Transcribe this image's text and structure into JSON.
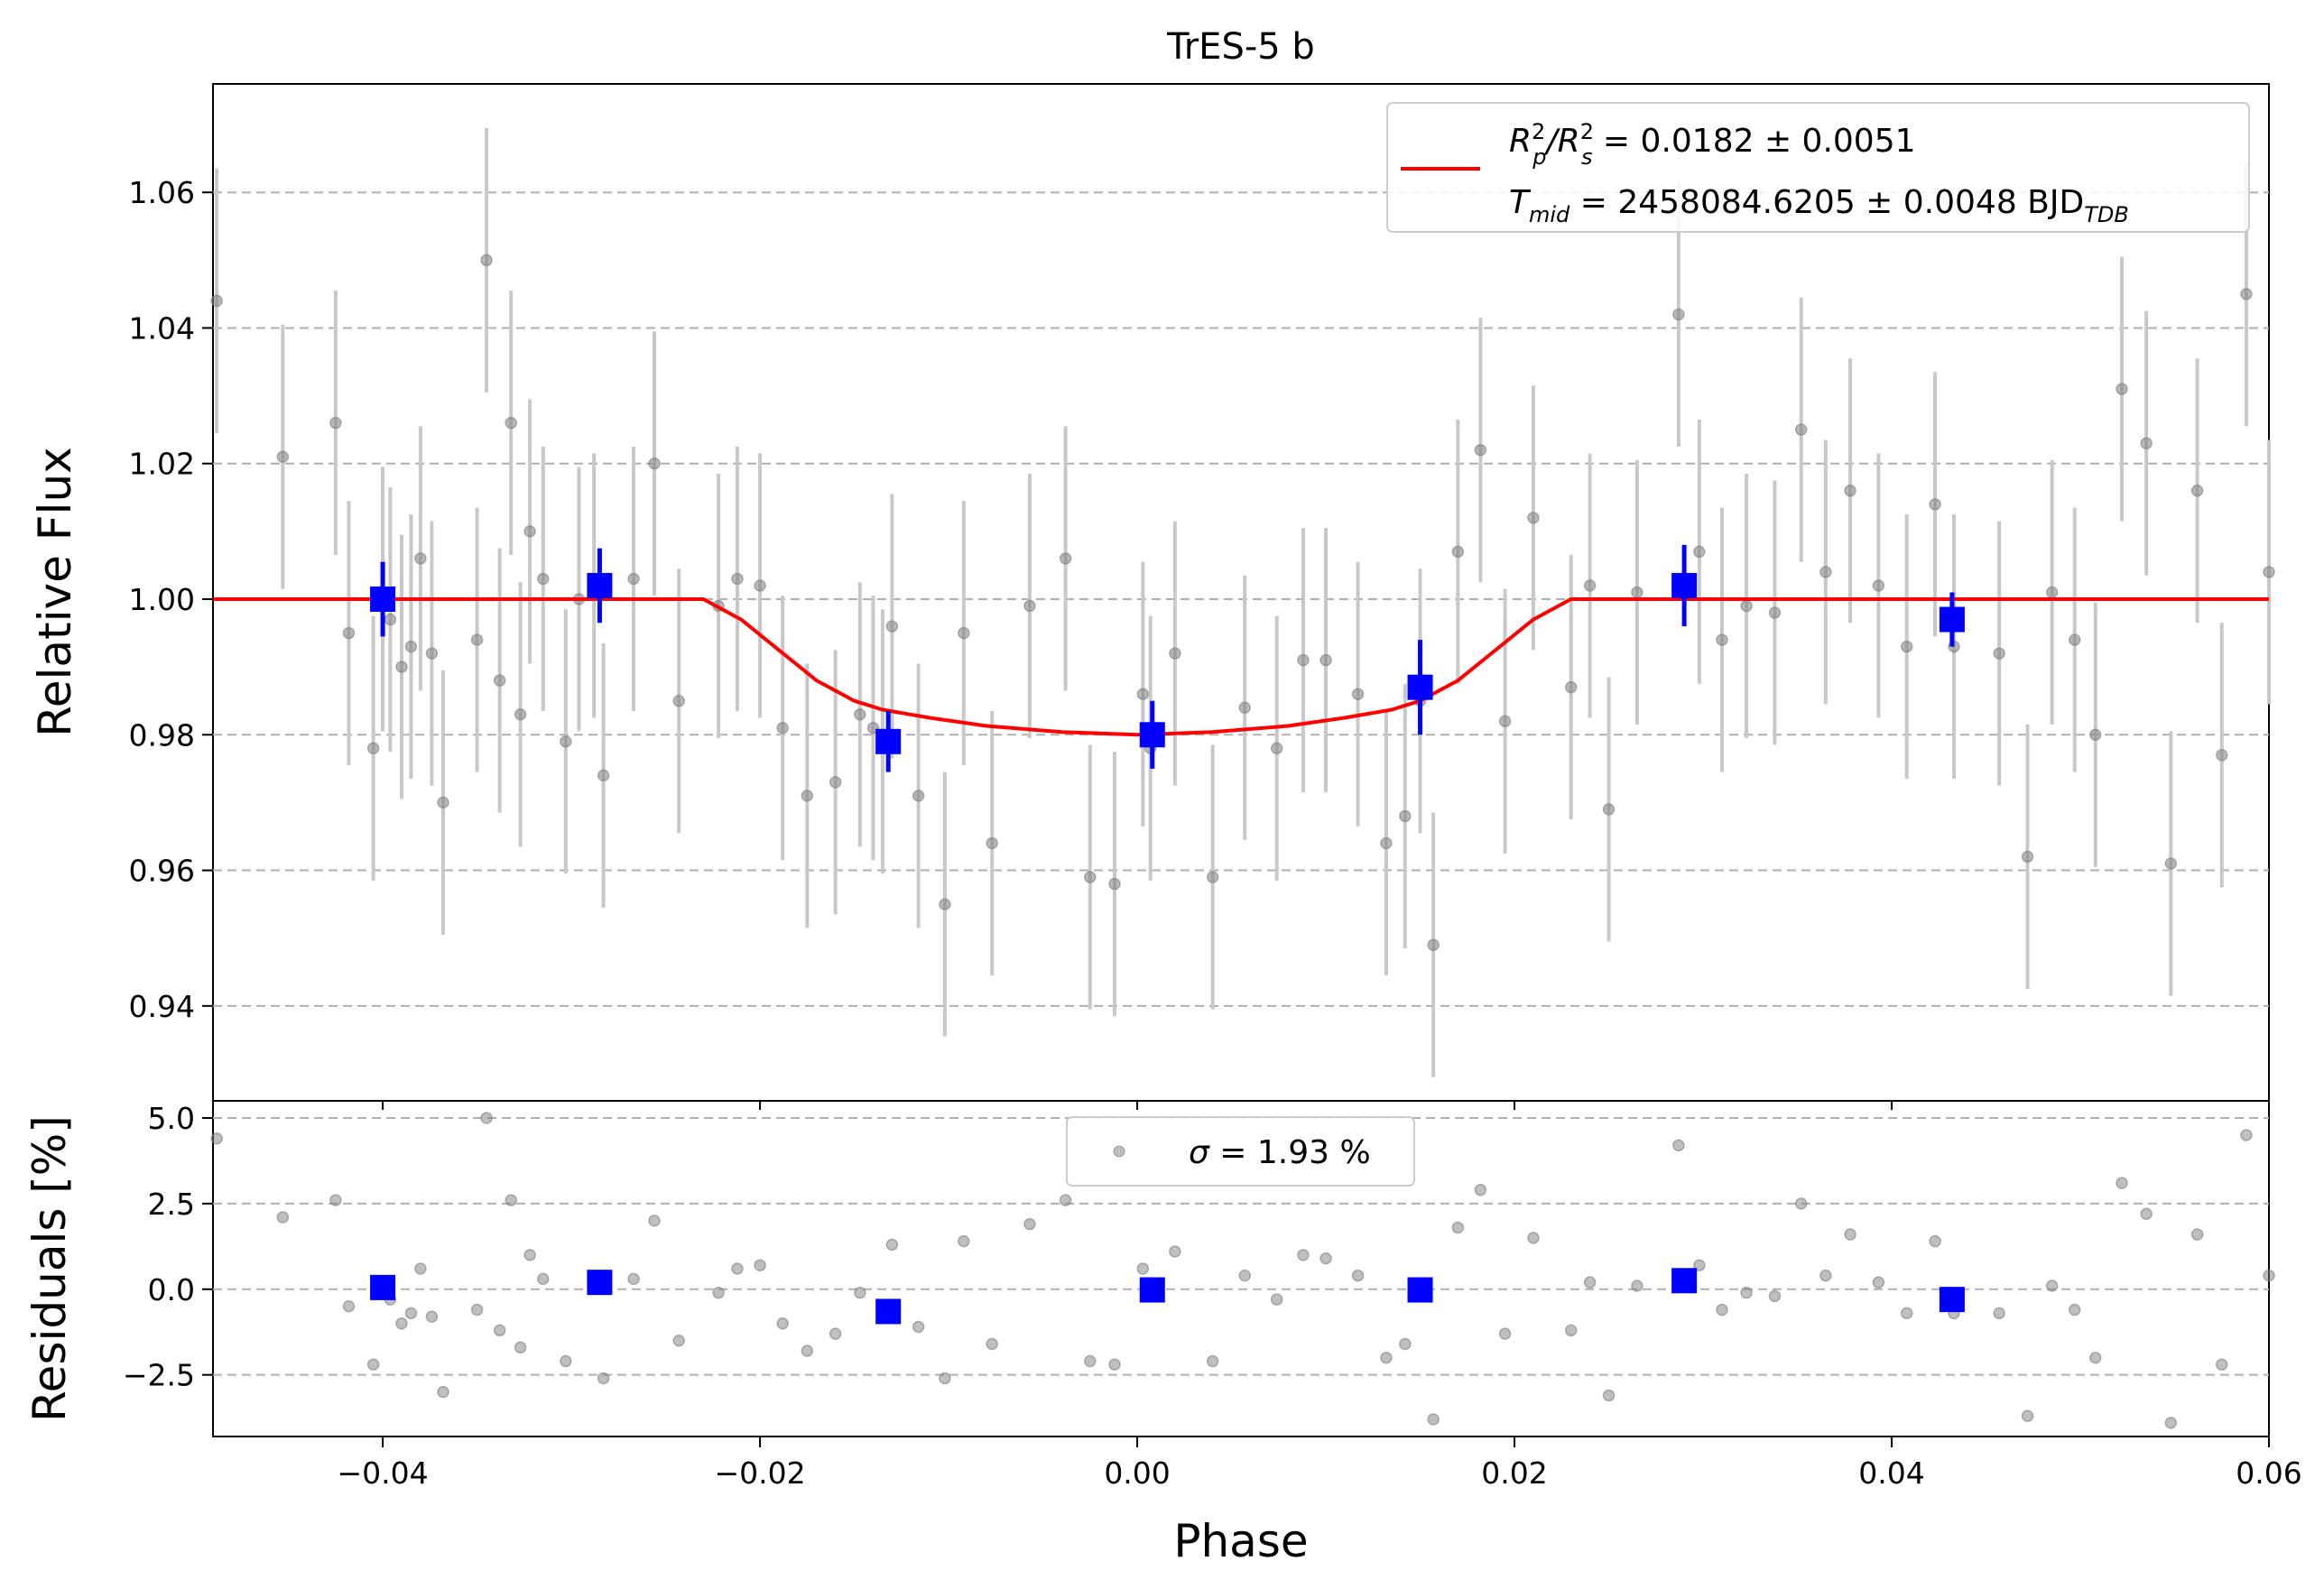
{
  "chart_data": {
    "type": "scatter",
    "title": "TrES-5 b",
    "xlabel": "Phase",
    "xlim": [
      -0.049,
      0.06
    ],
    "xticks": [
      -0.04,
      -0.02,
      0.0,
      0.02,
      0.04,
      0.06
    ],
    "xtick_labels": [
      "−0.04",
      "−0.02",
      "0.00",
      "0.02",
      "0.04",
      "0.06"
    ],
    "grid": "horizontal dashed",
    "colors": {
      "raw": "#808080",
      "errorbar": "#c8c8c8",
      "binned": "#0000ff",
      "model": "#ff0000",
      "grid": "#b0b0b0"
    },
    "top": {
      "ylabel": "Relative Flux",
      "ylim": [
        0.926,
        1.076
      ],
      "yticks": [
        0.94,
        0.96,
        0.98,
        1.0,
        1.02,
        1.04,
        1.06
      ],
      "ytick_labels": [
        "0.94",
        "0.96",
        "0.98",
        "1.00",
        "1.02",
        "1.04",
        "1.06"
      ],
      "legend": {
        "position": "top-right",
        "line1_a": "R",
        "line1_sup1": "2",
        "line1_sub1": "p",
        "line1_slash": "/R",
        "line1_sup2": "2",
        "line1_sub2": "s",
        "line1_value": " = 0.0182 ± 0.0051",
        "line2_a": "T",
        "line2_sub": "mid",
        "line2_value": " = 2458084.6205 ± 0.0048 BJD",
        "line2_sub2": "TDB"
      },
      "raw_error": 0.0195,
      "raw_points": [
        [
          -0.0488,
          1.044
        ],
        [
          -0.0453,
          1.021
        ],
        [
          -0.0425,
          1.026
        ],
        [
          -0.0418,
          0.995
        ],
        [
          -0.0405,
          0.978
        ],
        [
          -0.04,
          1.0
        ],
        [
          -0.0396,
          0.997
        ],
        [
          -0.039,
          0.99
        ],
        [
          -0.0385,
          0.993
        ],
        [
          -0.038,
          1.006
        ],
        [
          -0.0374,
          0.992
        ],
        [
          -0.0368,
          0.97
        ],
        [
          -0.035,
          0.994
        ],
        [
          -0.0345,
          1.05
        ],
        [
          -0.0338,
          0.988
        ],
        [
          -0.0332,
          1.026
        ],
        [
          -0.0327,
          0.983
        ],
        [
          -0.0322,
          1.01
        ],
        [
          -0.0315,
          1.003
        ],
        [
          -0.0303,
          0.979
        ],
        [
          -0.0296,
          1.0
        ],
        [
          -0.0288,
          1.002
        ],
        [
          -0.0283,
          0.974
        ],
        [
          -0.0267,
          1.003
        ],
        [
          -0.0256,
          1.02
        ],
        [
          -0.0243,
          0.985
        ],
        [
          -0.0222,
          0.999
        ],
        [
          -0.0212,
          1.003
        ],
        [
          -0.02,
          1.002
        ],
        [
          -0.0188,
          0.981
        ],
        [
          -0.0175,
          0.971
        ],
        [
          -0.016,
          0.973
        ],
        [
          -0.0147,
          0.983
        ],
        [
          -0.014,
          0.981
        ],
        [
          -0.0135,
          0.979
        ],
        [
          -0.013,
          0.996
        ],
        [
          -0.0116,
          0.971
        ],
        [
          -0.0102,
          0.955
        ],
        [
          -0.0092,
          0.995
        ],
        [
          -0.0077,
          0.964
        ],
        [
          -0.0057,
          0.999
        ],
        [
          -0.0038,
          1.006
        ],
        [
          -0.0025,
          0.959
        ],
        [
          -0.0012,
          0.958
        ],
        [
          0.0003,
          0.986
        ],
        [
          0.0007,
          0.978
        ],
        [
          0.002,
          0.992
        ],
        [
          0.004,
          0.959
        ],
        [
          0.0057,
          0.984
        ],
        [
          0.0074,
          0.978
        ],
        [
          0.0088,
          0.991
        ],
        [
          0.01,
          0.991
        ],
        [
          0.0117,
          0.986
        ],
        [
          0.0132,
          0.964
        ],
        [
          0.0142,
          0.968
        ],
        [
          0.015,
          0.985
        ],
        [
          0.0157,
          0.949
        ],
        [
          0.017,
          1.007
        ],
        [
          0.0182,
          1.022
        ],
        [
          0.0195,
          0.982
        ],
        [
          0.021,
          1.012
        ],
        [
          0.023,
          0.987
        ],
        [
          0.024,
          1.002
        ],
        [
          0.025,
          0.969
        ],
        [
          0.0265,
          1.001
        ],
        [
          0.0287,
          1.042
        ],
        [
          0.0298,
          1.007
        ],
        [
          0.031,
          0.994
        ],
        [
          0.0323,
          0.999
        ],
        [
          0.0338,
          0.998
        ],
        [
          0.0352,
          1.025
        ],
        [
          0.0365,
          1.004
        ],
        [
          0.0378,
          1.016
        ],
        [
          0.0393,
          1.002
        ],
        [
          0.0408,
          0.993
        ],
        [
          0.0423,
          1.014
        ],
        [
          0.0433,
          0.993
        ],
        [
          0.0457,
          0.992
        ],
        [
          0.0472,
          0.962
        ],
        [
          0.0485,
          1.001
        ],
        [
          0.0497,
          0.994
        ],
        [
          0.0508,
          0.98
        ],
        [
          0.0522,
          1.031
        ],
        [
          0.0535,
          1.023
        ],
        [
          0.0548,
          0.961
        ],
        [
          0.0562,
          1.016
        ],
        [
          0.0575,
          0.977
        ],
        [
          0.0588,
          1.045
        ],
        [
          0.06,
          1.004
        ]
      ],
      "binned_points": [
        [
          -0.04,
          1.0,
          0.0055
        ],
        [
          -0.0285,
          1.002,
          0.0055
        ],
        [
          -0.0132,
          0.979,
          0.0045
        ],
        [
          0.0008,
          0.98,
          0.005
        ],
        [
          0.015,
          0.987,
          0.007
        ],
        [
          0.029,
          1.002,
          0.006
        ],
        [
          0.0432,
          0.997,
          0.004
        ]
      ],
      "model": [
        [
          -0.049,
          1.0
        ],
        [
          -0.023,
          1.0
        ],
        [
          -0.021,
          0.997
        ],
        [
          -0.019,
          0.9925
        ],
        [
          -0.017,
          0.988
        ],
        [
          -0.015,
          0.985
        ],
        [
          -0.0135,
          0.9837
        ],
        [
          -0.011,
          0.9825
        ],
        [
          -0.008,
          0.9813
        ],
        [
          -0.004,
          0.9804
        ],
        [
          0.0,
          0.98
        ],
        [
          0.004,
          0.9804
        ],
        [
          0.008,
          0.9813
        ],
        [
          0.011,
          0.9825
        ],
        [
          0.0135,
          0.9837
        ],
        [
          0.015,
          0.985
        ],
        [
          0.017,
          0.988
        ],
        [
          0.019,
          0.9925
        ],
        [
          0.021,
          0.997
        ],
        [
          0.023,
          1.0
        ],
        [
          0.06,
          1.0
        ]
      ]
    },
    "bottom": {
      "ylabel": "Residuals [%]",
      "ylim": [
        -4.3,
        5.5
      ],
      "yticks": [
        -2.5,
        0.0,
        2.5,
        5.0
      ],
      "ytick_labels": [
        "−2.5",
        "0.0",
        "2.5",
        "5.0"
      ],
      "legend": {
        "position": "top-center",
        "sigma": "σ",
        "text": " = 1.93 %"
      },
      "raw_points": [
        [
          -0.0488,
          4.4
        ],
        [
          -0.0453,
          2.1
        ],
        [
          -0.0425,
          2.6
        ],
        [
          -0.0418,
          -0.5
        ],
        [
          -0.0405,
          -2.2
        ],
        [
          -0.0396,
          -0.3
        ],
        [
          -0.039,
          -1.0
        ],
        [
          -0.0385,
          -0.7
        ],
        [
          -0.038,
          0.6
        ],
        [
          -0.0374,
          -0.8
        ],
        [
          -0.0368,
          -3.0
        ],
        [
          -0.035,
          -0.6
        ],
        [
          -0.0345,
          5.0
        ],
        [
          -0.0338,
          -1.2
        ],
        [
          -0.0332,
          2.6
        ],
        [
          -0.0327,
          -1.7
        ],
        [
          -0.0322,
          1.0
        ],
        [
          -0.0315,
          0.3
        ],
        [
          -0.0303,
          -2.1
        ],
        [
          -0.0283,
          -2.6
        ],
        [
          -0.0267,
          0.3
        ],
        [
          -0.0256,
          2.0
        ],
        [
          -0.0243,
          -1.5
        ],
        [
          -0.0222,
          -0.1
        ],
        [
          -0.0212,
          0.6
        ],
        [
          -0.02,
          0.7
        ],
        [
          -0.0188,
          -1.0
        ],
        [
          -0.0175,
          -1.8
        ],
        [
          -0.016,
          -1.3
        ],
        [
          -0.0147,
          -0.1
        ],
        [
          -0.013,
          1.3
        ],
        [
          -0.0116,
          -1.1
        ],
        [
          -0.0102,
          -2.6
        ],
        [
          -0.0092,
          1.4
        ],
        [
          -0.0077,
          -1.6
        ],
        [
          -0.0057,
          1.9
        ],
        [
          -0.0038,
          2.6
        ],
        [
          -0.0025,
          -2.1
        ],
        [
          -0.0012,
          -2.2
        ],
        [
          0.0003,
          0.6
        ],
        [
          0.002,
          1.1
        ],
        [
          0.004,
          -2.1
        ],
        [
          0.0057,
          0.4
        ],
        [
          0.0074,
          -0.3
        ],
        [
          0.0088,
          1.0
        ],
        [
          0.01,
          0.9
        ],
        [
          0.0117,
          0.4
        ],
        [
          0.0132,
          -2.0
        ],
        [
          0.0142,
          -1.6
        ],
        [
          0.0157,
          -3.8
        ],
        [
          0.017,
          1.8
        ],
        [
          0.0182,
          2.9
        ],
        [
          0.0195,
          -1.3
        ],
        [
          0.021,
          1.5
        ],
        [
          0.023,
          -1.2
        ],
        [
          0.024,
          0.2
        ],
        [
          0.025,
          -3.1
        ],
        [
          0.0265,
          0.1
        ],
        [
          0.0287,
          4.2
        ],
        [
          0.0298,
          0.7
        ],
        [
          0.031,
          -0.6
        ],
        [
          0.0323,
          -0.1
        ],
        [
          0.0338,
          -0.2
        ],
        [
          0.0352,
          2.5
        ],
        [
          0.0365,
          0.4
        ],
        [
          0.0378,
          1.6
        ],
        [
          0.0393,
          0.2
        ],
        [
          0.0408,
          -0.7
        ],
        [
          0.0423,
          1.4
        ],
        [
          0.0433,
          -0.7
        ],
        [
          0.0457,
          -0.7
        ],
        [
          0.0472,
          -3.7
        ],
        [
          0.0485,
          0.1
        ],
        [
          0.0497,
          -0.6
        ],
        [
          0.0508,
          -2.0
        ],
        [
          0.0522,
          3.1
        ],
        [
          0.0535,
          2.2
        ],
        [
          0.0548,
          -3.9
        ],
        [
          0.0562,
          1.6
        ],
        [
          0.0575,
          -2.2
        ],
        [
          0.0588,
          4.5
        ],
        [
          0.06,
          0.4
        ]
      ],
      "binned_points": [
        [
          -0.04,
          0.05
        ],
        [
          -0.0285,
          0.2
        ],
        [
          -0.0132,
          -0.65
        ],
        [
          0.0008,
          -0.02
        ],
        [
          0.015,
          -0.02
        ],
        [
          0.029,
          0.25
        ],
        [
          0.0432,
          -0.3
        ]
      ]
    }
  }
}
